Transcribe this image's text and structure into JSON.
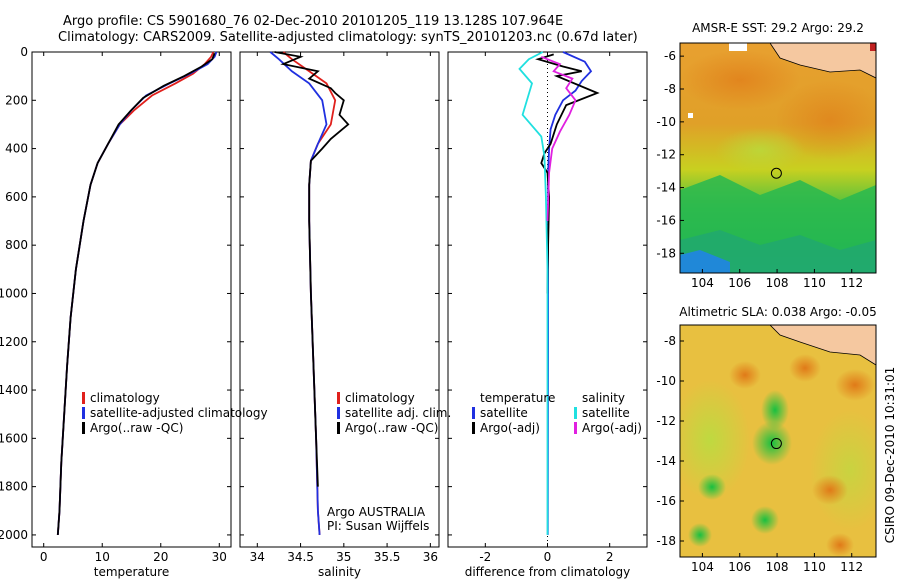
{
  "header": {
    "line1": "Argo profile: CS 5901680_76 02-Dec-2010 20101205_119 13.128S 107.964E",
    "line2": "Climatology: CARS2009. Satellite-adjusted climatology: synTS_20101203.nc (0.67d later)"
  },
  "colors": {
    "climatology": "#e0201c",
    "satellite": "#2030e0",
    "argo": "#000000",
    "cyan": "#20e0e0",
    "magenta": "#e020e0"
  },
  "chart_data": [
    {
      "type": "line",
      "panel": "temperature",
      "xlabel": "temperature",
      "ylabel": "",
      "xlim": [
        -2,
        32
      ],
      "ylim": [
        2050,
        0
      ],
      "xticks": [
        0,
        10,
        20,
        30
      ],
      "yticks": [
        0,
        200,
        400,
        600,
        800,
        1000,
        1200,
        1400,
        1600,
        1800,
        2000
      ],
      "legend": [
        "climatology",
        "satellite-adjusted climatology",
        "Argo(..raw -QC)"
      ],
      "legend_placement": "lower-right",
      "series": [
        {
          "name": "climatology",
          "color": "red",
          "x": [
            29.0,
            28.6,
            27.5,
            25.5,
            22.5,
            18.5,
            15.5,
            13.0,
            11.0,
            9.2,
            8.0,
            6.8,
            5.5,
            4.6,
            4.0,
            3.5,
            3.0,
            2.7,
            2.4
          ],
          "y": [
            0,
            20,
            50,
            90,
            130,
            180,
            240,
            300,
            380,
            460,
            550,
            700,
            900,
            1100,
            1300,
            1500,
            1700,
            1900,
            2000
          ]
        },
        {
          "name": "satellite-adjusted climatology",
          "color": "blue",
          "x": [
            29.5,
            29.2,
            28.0,
            25.0,
            21.5,
            17.5,
            15.0,
            13.0,
            11.0,
            9.2,
            8.0,
            6.8,
            5.5,
            4.6,
            4.0,
            3.5,
            3.0,
            2.7,
            2.4
          ],
          "y": [
            0,
            20,
            50,
            90,
            130,
            180,
            240,
            300,
            380,
            460,
            550,
            700,
            900,
            1100,
            1300,
            1500,
            1700,
            1900,
            2000
          ]
        },
        {
          "name": "Argo(..raw -QC)",
          "color": "black",
          "x": [
            29.2,
            28.8,
            27.0,
            24.0,
            20.5,
            17.0,
            14.8,
            12.8,
            11.0,
            9.2,
            8.0,
            6.8,
            5.5,
            4.6,
            4.0,
            3.5,
            3.0,
            2.7,
            2.4
          ],
          "y": [
            5,
            30,
            60,
            100,
            140,
            190,
            245,
            300,
            380,
            460,
            550,
            700,
            900,
            1100,
            1300,
            1500,
            1700,
            1900,
            2000
          ]
        }
      ]
    },
    {
      "type": "line",
      "panel": "salinity",
      "xlabel": "salinity",
      "xlim": [
        33.8,
        36.1
      ],
      "ylim": [
        2050,
        0
      ],
      "xticks": [
        34,
        34.5,
        35,
        35.5,
        36
      ],
      "legend": [
        "climatology",
        "satellite adj. clim.",
        "Argo(..raw -QC)"
      ],
      "legend_placement": "lower-right",
      "annotation": [
        "Argo AUSTRALIA",
        "PI: Susan Wijffels"
      ],
      "series": [
        {
          "name": "climatology",
          "color": "red",
          "x": [
            34.3,
            34.4,
            34.6,
            34.8,
            34.9,
            34.85,
            34.7,
            34.62,
            34.6,
            34.6,
            34.62,
            34.65,
            34.68,
            34.7,
            34.72
          ],
          "y": [
            0,
            30,
            80,
            130,
            200,
            300,
            380,
            450,
            550,
            700,
            1000,
            1300,
            1600,
            1900,
            2000
          ]
        },
        {
          "name": "satellite adj. clim.",
          "color": "blue",
          "x": [
            34.15,
            34.25,
            34.4,
            34.6,
            34.75,
            34.8,
            34.7,
            34.62,
            34.6,
            34.6,
            34.62,
            34.65,
            34.68,
            34.7,
            34.72
          ],
          "y": [
            0,
            30,
            80,
            130,
            200,
            300,
            380,
            450,
            550,
            700,
            1000,
            1300,
            1600,
            1900,
            2000
          ]
        },
        {
          "name": "Argo(..raw -QC)",
          "color": "black",
          "x": [
            34.2,
            34.5,
            34.3,
            34.7,
            34.6,
            34.85,
            34.9,
            35.0,
            34.95,
            35.05,
            34.85,
            34.75,
            34.62,
            34.6,
            34.6,
            34.62,
            34.65,
            34.68,
            34.7
          ],
          "y": [
            0,
            20,
            50,
            80,
            110,
            150,
            170,
            200,
            260,
            300,
            360,
            400,
            450,
            550,
            700,
            1000,
            1300,
            1600,
            1800
          ]
        }
      ]
    },
    {
      "type": "line",
      "panel": "difference",
      "xlabel": "difference from climatology",
      "xlim": [
        -3.2,
        3.2
      ],
      "ylim": [
        2050,
        0
      ],
      "xticks": [
        -2,
        0,
        2
      ],
      "legend": [
        "temperature",
        "satellite",
        "Argo(-adj)",
        "salinity",
        "satellite",
        "Argo(-adj)"
      ],
      "legend_placement": "lower-center",
      "series": [
        {
          "name": "temperature satellite",
          "color": "blue",
          "x": [
            0.5,
            1.2,
            1.4,
            1.1,
            0.9,
            0.5,
            0.25,
            0.1,
            0.05,
            0.02,
            0.02,
            0.02,
            0.01
          ],
          "y": [
            0,
            40,
            80,
            120,
            160,
            200,
            260,
            320,
            400,
            500,
            700,
            1200,
            2000
          ]
        },
        {
          "name": "temperature Argo(-adj)",
          "color": "black",
          "x": [
            0.2,
            -0.3,
            0.5,
            1.1,
            0.3,
            1.6,
            0.6,
            0.3,
            0.1,
            -0.1,
            -0.2,
            0.0,
            0.05,
            0.02,
            0.0
          ],
          "y": [
            10,
            30,
            60,
            80,
            100,
            170,
            220,
            300,
            380,
            420,
            460,
            500,
            600,
            800,
            1000
          ]
        },
        {
          "name": "salinity satellite",
          "color": "cyan",
          "x": [
            -0.15,
            -0.6,
            -0.9,
            -0.5,
            -0.8,
            -0.2,
            -0.1,
            -0.05,
            0.0,
            0.0,
            0.0
          ],
          "y": [
            0,
            30,
            70,
            130,
            260,
            350,
            430,
            600,
            900,
            1400,
            2000
          ]
        },
        {
          "name": "salinity Argo(-adj)",
          "color": "magenta",
          "x": [
            -0.2,
            0.4,
            0.2,
            0.8,
            0.6,
            0.9,
            0.7,
            0.4,
            0.15,
            0.05,
            0.0
          ],
          "y": [
            20,
            50,
            80,
            110,
            150,
            200,
            260,
            330,
            400,
            500,
            700
          ]
        }
      ]
    },
    {
      "type": "heatmap",
      "panel": "sst-map",
      "title": "AMSR-E SST: 29.2 Argo: 29.2",
      "xlim": [
        102.8,
        113.3
      ],
      "ylim": [
        -19.2,
        -5.2
      ],
      "xticks": [
        104,
        106,
        108,
        110,
        112
      ],
      "yticks": [
        -6,
        -8,
        -10,
        -12,
        -14,
        -16,
        -18
      ],
      "marker": {
        "lon": 107.964,
        "lat": -13.128
      }
    },
    {
      "type": "heatmap",
      "panel": "sla-map",
      "title": "Altimetric SLA: 0.038 Argo: -0.05",
      "xlim": [
        102.8,
        113.3
      ],
      "ylim": [
        -18.8,
        -7.2
      ],
      "xticks": [
        104,
        106,
        108,
        110,
        112
      ],
      "yticks": [
        -8,
        -10,
        -12,
        -14,
        -16,
        -18
      ],
      "marker": {
        "lon": 107.964,
        "lat": -13.128
      }
    }
  ],
  "footer": {
    "stamp": "CSIRO 09-Dec-2010 10:31:01"
  }
}
